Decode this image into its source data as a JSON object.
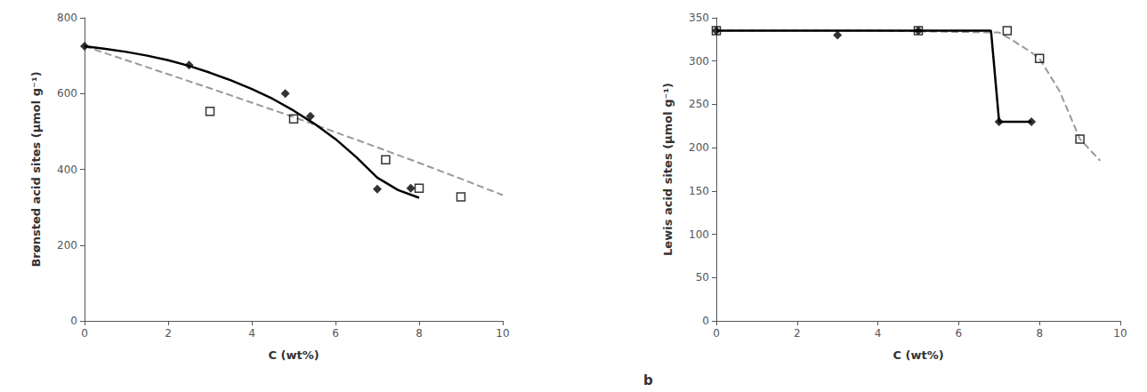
{
  "chart_data": [
    {
      "type": "line",
      "xlabel": "C (wt%)",
      "ylabel": "Brønsted acid sites (µmol g⁻¹)",
      "xlim": [
        0,
        10
      ],
      "ylim": [
        0,
        800
      ],
      "xticks": [
        0,
        2,
        4,
        6,
        8,
        10
      ],
      "yticks": [
        0,
        200,
        400,
        600,
        800
      ],
      "grid": false,
      "series": [
        {
          "type": "line",
          "color": "#999999",
          "line_style": "dashed",
          "x": [
            0,
            1.0,
            2.0,
            3.0,
            4.0,
            5.0,
            6.0,
            7.0,
            8.0,
            9.0,
            10.0
          ],
          "values": [
            725,
            688,
            651,
            614,
            576,
            538,
            498,
            458,
            417,
            375,
            332
          ]
        },
        {
          "type": "line",
          "color": "#000000",
          "line_style": "solid",
          "x": [
            0,
            0.5,
            1.0,
            1.5,
            2.0,
            2.5,
            3.0,
            3.5,
            4.0,
            4.5,
            5.0,
            5.5,
            6.0,
            6.5,
            7.0,
            7.5,
            8.0
          ],
          "values": [
            725,
            718,
            710,
            700,
            688,
            673,
            655,
            635,
            612,
            586,
            555,
            520,
            480,
            432,
            378,
            345,
            325
          ]
        },
        {
          "type": "scatter",
          "color": "#000000",
          "marker": "diamond",
          "x": [
            0,
            2.5,
            4.8,
            5.4,
            7.0,
            7.8
          ],
          "values": [
            725,
            675,
            600,
            540,
            348,
            350
          ]
        },
        {
          "type": "scatter",
          "color": "#000000",
          "marker": "open_square",
          "x": [
            3.0,
            5.0,
            7.2,
            8.0,
            9.0
          ],
          "values": [
            553,
            533,
            425,
            350,
            327
          ]
        }
      ]
    },
    {
      "type": "line",
      "xlabel": "C (wt%)",
      "ylabel": "Lewis acid sites (µmol g⁻¹)",
      "xlim": [
        0,
        10
      ],
      "ylim": [
        0,
        350
      ],
      "xticks": [
        0,
        2,
        4,
        6,
        8,
        10
      ],
      "yticks": [
        0,
        50,
        100,
        150,
        200,
        250,
        300,
        350
      ],
      "grid": false,
      "annotation": "b",
      "series": [
        {
          "type": "line",
          "color": "#999999",
          "line_style": "dashed",
          "x": [
            0,
            4.0,
            7.0,
            7.3,
            7.8,
            8.0,
            8.5,
            9.0,
            9.5
          ],
          "values": [
            335,
            335,
            333,
            325,
            310,
            303,
            265,
            210,
            185
          ]
        },
        {
          "type": "line",
          "color": "#000000",
          "line_style": "solid",
          "x": [
            0,
            4.0,
            6.8,
            7.0,
            7.8
          ],
          "values": [
            335,
            335,
            335,
            230,
            230
          ]
        },
        {
          "type": "scatter",
          "color": "#000000",
          "marker": "diamond",
          "x": [
            0,
            3.0,
            5.0,
            7.0,
            7.8
          ],
          "values": [
            335,
            330,
            335,
            230,
            230
          ]
        },
        {
          "type": "scatter",
          "color": "#000000",
          "marker": "open_square",
          "x": [
            0,
            5.0,
            7.2,
            8.0,
            9.0
          ],
          "values": [
            335,
            335,
            335,
            303,
            210
          ]
        }
      ]
    }
  ]
}
